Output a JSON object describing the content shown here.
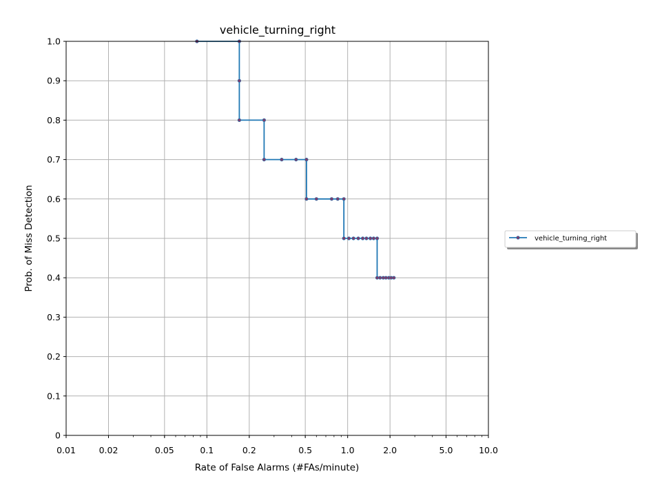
{
  "chart_data": {
    "type": "line",
    "title": "vehicle_turning_right",
    "xlabel": "Rate of False Alarms (#FAs/minute)",
    "ylabel": "Prob. of Miss Detection",
    "xscale": "log",
    "xlim": [
      0.01,
      10.0
    ],
    "ylim": [
      0,
      1.0
    ],
    "xticks": [
      0.01,
      0.02,
      0.05,
      0.1,
      0.2,
      0.5,
      1.0,
      2.0,
      5.0,
      10.0
    ],
    "xtick_labels": [
      "0.01",
      "0.02",
      "0.05",
      "0.1",
      "0.2",
      "0.5",
      "1.0",
      "2.0",
      "5.0",
      "10.0"
    ],
    "yticks": [
      0,
      0.1,
      0.2,
      0.3,
      0.4,
      0.5,
      0.6,
      0.7,
      0.8,
      0.9,
      1.0
    ],
    "ytick_labels": [
      "0",
      "0.1",
      "0.2",
      "0.3",
      "0.4",
      "0.5",
      "0.6",
      "0.7",
      "0.8",
      "0.9",
      "1.0"
    ],
    "grid": true,
    "legend_position": "right-outside",
    "series": [
      {
        "name": "vehicle_turning_right",
        "color": "#1f77b4",
        "marker_color": "#7a3f6e",
        "step": true,
        "points": [
          [
            0.085,
            1.0
          ],
          [
            0.17,
            1.0
          ],
          [
            0.17,
            0.9
          ],
          [
            0.17,
            0.8
          ],
          [
            0.255,
            0.8
          ],
          [
            0.255,
            0.7
          ],
          [
            0.34,
            0.7
          ],
          [
            0.43,
            0.7
          ],
          [
            0.51,
            0.7
          ],
          [
            0.51,
            0.6
          ],
          [
            0.6,
            0.6
          ],
          [
            0.77,
            0.6
          ],
          [
            0.85,
            0.6
          ],
          [
            0.94,
            0.6
          ],
          [
            0.94,
            0.5
          ],
          [
            1.02,
            0.5
          ],
          [
            1.1,
            0.5
          ],
          [
            1.19,
            0.5
          ],
          [
            1.28,
            0.5
          ],
          [
            1.36,
            0.5
          ],
          [
            1.45,
            0.5
          ],
          [
            1.53,
            0.5
          ],
          [
            1.62,
            0.5
          ],
          [
            1.62,
            0.4
          ],
          [
            1.7,
            0.4
          ],
          [
            1.79,
            0.4
          ],
          [
            1.87,
            0.4
          ],
          [
            1.96,
            0.4
          ],
          [
            2.04,
            0.4
          ],
          [
            2.13,
            0.4
          ]
        ]
      }
    ]
  }
}
